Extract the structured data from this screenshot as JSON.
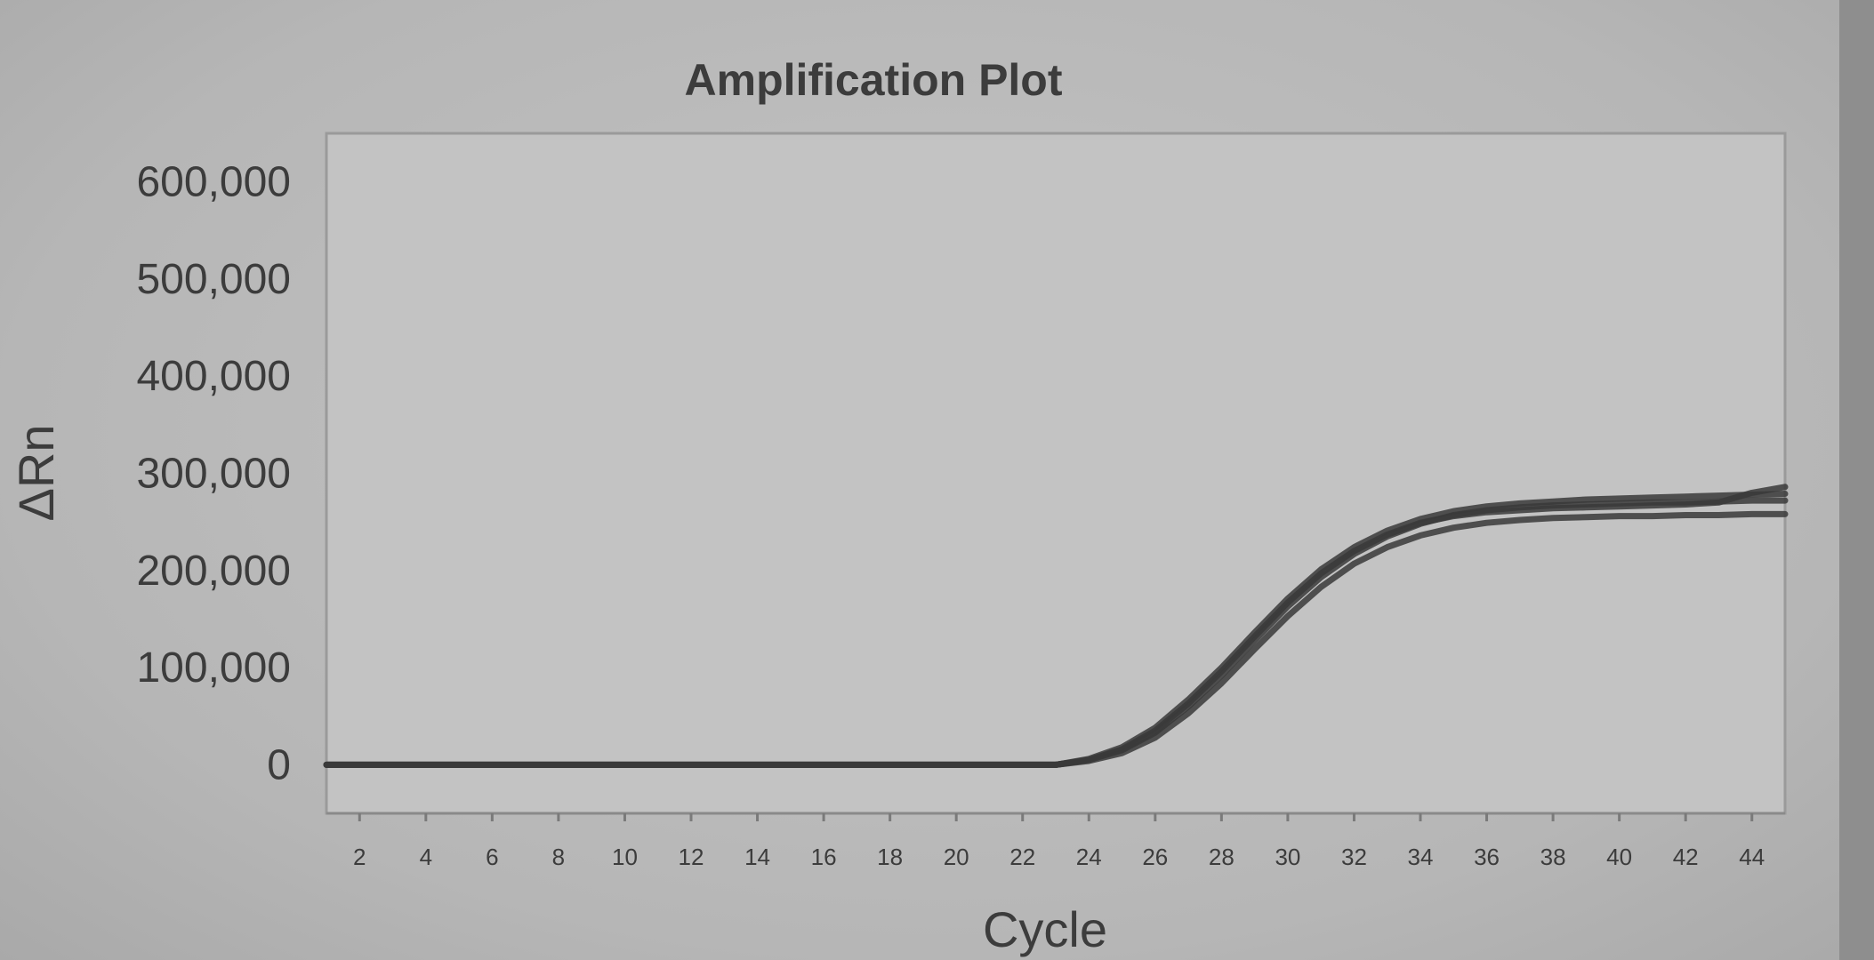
{
  "chart_data": {
    "type": "line",
    "title": "Amplification Plot",
    "xlabel": "Cycle",
    "ylabel": "ΔRn",
    "xlim": [
      1,
      45
    ],
    "ylim": [
      -50000,
      650000
    ],
    "x_ticks": [
      2,
      4,
      6,
      8,
      10,
      12,
      14,
      16,
      18,
      20,
      22,
      24,
      26,
      28,
      30,
      32,
      34,
      36,
      38,
      40,
      42,
      44
    ],
    "x_tick_labels": [
      "2",
      "4",
      "6",
      "8",
      "10",
      "12",
      "14",
      "16",
      "18",
      "20",
      "22",
      "24",
      "26",
      "28",
      "30",
      "32",
      "34",
      "36",
      "38",
      "40",
      "42",
      "44"
    ],
    "y_ticks": [
      0,
      100000,
      200000,
      300000,
      400000,
      500000,
      600000
    ],
    "y_tick_labels": [
      "0",
      "100,000",
      "200,000",
      "300,000",
      "400,000",
      "500,000",
      "600,000"
    ],
    "grid": false,
    "colors": {
      "curve": "#3a3a3a",
      "plot_bg": "#c3c3c3",
      "frame": "#9a9a9a"
    },
    "x": [
      1,
      2,
      4,
      6,
      8,
      10,
      12,
      14,
      16,
      18,
      20,
      22,
      23,
      24,
      25,
      26,
      27,
      28,
      29,
      30,
      31,
      32,
      33,
      34,
      35,
      36,
      37,
      38,
      39,
      40,
      41,
      42,
      43,
      44,
      45
    ],
    "series": [
      {
        "values": [
          0,
          0,
          0,
          0,
          0,
          0,
          0,
          0,
          0,
          0,
          0,
          0,
          0,
          5000,
          15000,
          33000,
          60000,
          92000,
          128000,
          163000,
          193000,
          217000,
          235000,
          248000,
          257000,
          262000,
          265000,
          267000,
          268000,
          269000,
          270000,
          270000,
          271000,
          272000,
          272000
        ]
      },
      {
        "values": [
          0,
          0,
          0,
          0,
          0,
          0,
          0,
          0,
          0,
          0,
          0,
          0,
          0,
          6000,
          18000,
          38000,
          67000,
          100000,
          136000,
          171000,
          201000,
          224000,
          241000,
          253000,
          261000,
          266000,
          269000,
          271000,
          273000,
          274000,
          275000,
          276000,
          277000,
          278000,
          279000
        ]
      },
      {
        "values": [
          0,
          0,
          0,
          0,
          0,
          0,
          0,
          0,
          0,
          0,
          0,
          0,
          0,
          4000,
          12000,
          28000,
          53000,
          84000,
          119000,
          153000,
          183000,
          207000,
          224000,
          236000,
          244000,
          249000,
          252000,
          254000,
          255000,
          256000,
          256000,
          257000,
          257000,
          258000,
          258000
        ]
      },
      {
        "values": [
          0,
          0,
          0,
          0,
          0,
          0,
          0,
          0,
          0,
          0,
          0,
          0,
          0,
          5000,
          16000,
          35000,
          63000,
          96000,
          132000,
          167000,
          197000,
          220000,
          237000,
          249000,
          256000,
          260000,
          262000,
          264000,
          265000,
          266000,
          267000,
          268000,
          270000,
          280000,
          286000
        ]
      }
    ]
  }
}
